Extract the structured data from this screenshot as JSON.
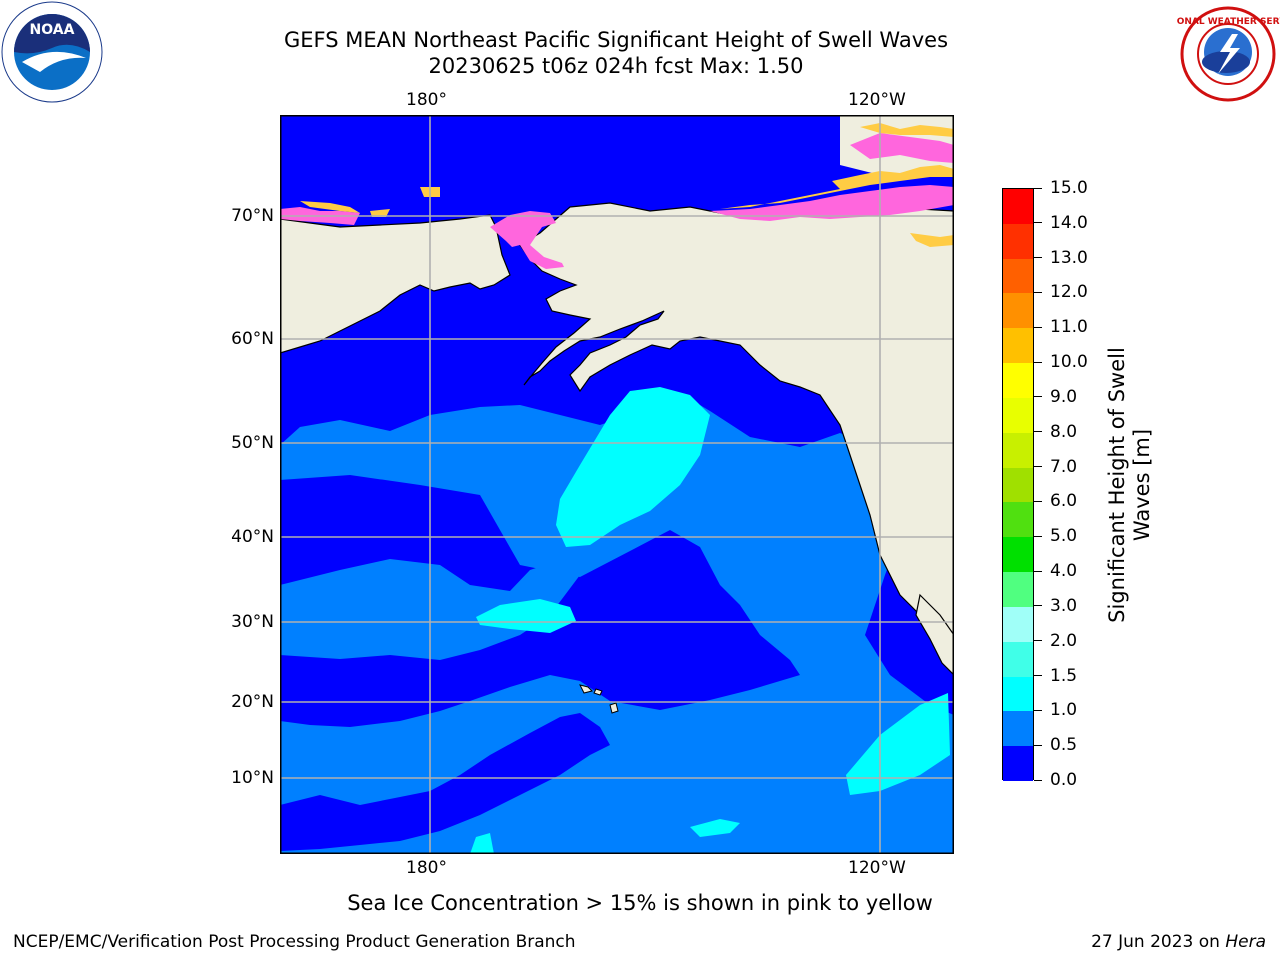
{
  "title": {
    "line1": "GEFS MEAN Northeast Pacific Significant Height of Swell Waves",
    "line2": "20230625 t06z 024h fcst   Max: 1.50"
  },
  "axes": {
    "lon_ticks": [
      "180°",
      "120°W"
    ],
    "lat_ticks": [
      "70°N",
      "60°N",
      "50°N",
      "40°N",
      "30°N",
      "20°N",
      "10°N"
    ]
  },
  "colorbar": {
    "label": "Significant Height of Swell Waves [m]",
    "ticks": [
      "15.0",
      "14.0",
      "13.0",
      "12.0",
      "11.0",
      "10.0",
      "9.0",
      "8.0",
      "7.0",
      "6.0",
      "5.0",
      "4.0",
      "3.0",
      "2.0",
      "1.5",
      "1.0",
      "0.5",
      "0.0"
    ],
    "colors_bottom_to_top": [
      "#0000ff",
      "#0080ff",
      "#00ffff",
      "#40ffe8",
      "#a0fff8",
      "#50ff80",
      "#00e000",
      "#50e010",
      "#a0e000",
      "#c8f000",
      "#e8ff00",
      "#ffff00",
      "#ffc000",
      "#ff9000",
      "#ff6000",
      "#ff3000",
      "#ff0000"
    ]
  },
  "map_colors": {
    "land": "#efeedf",
    "water_low": "#0000ff",
    "water_mid": "#0080ff",
    "water_high": "#00ffff",
    "ice_pink": "#ff66dd",
    "ice_yellow": "#ffcc44",
    "grid": "#b0b0b0"
  },
  "footnote": "Sea Ice Concentration > 15% is shown in pink to yellow",
  "credit": "NCEP/EMC/Verification Post Processing Product Generation Branch",
  "date_prefix": "27 Jun 2023 on",
  "date_machine": "Hera",
  "logos": {
    "noaa": "NOAA",
    "nws": "NATIONAL WEATHER SERVICE"
  }
}
